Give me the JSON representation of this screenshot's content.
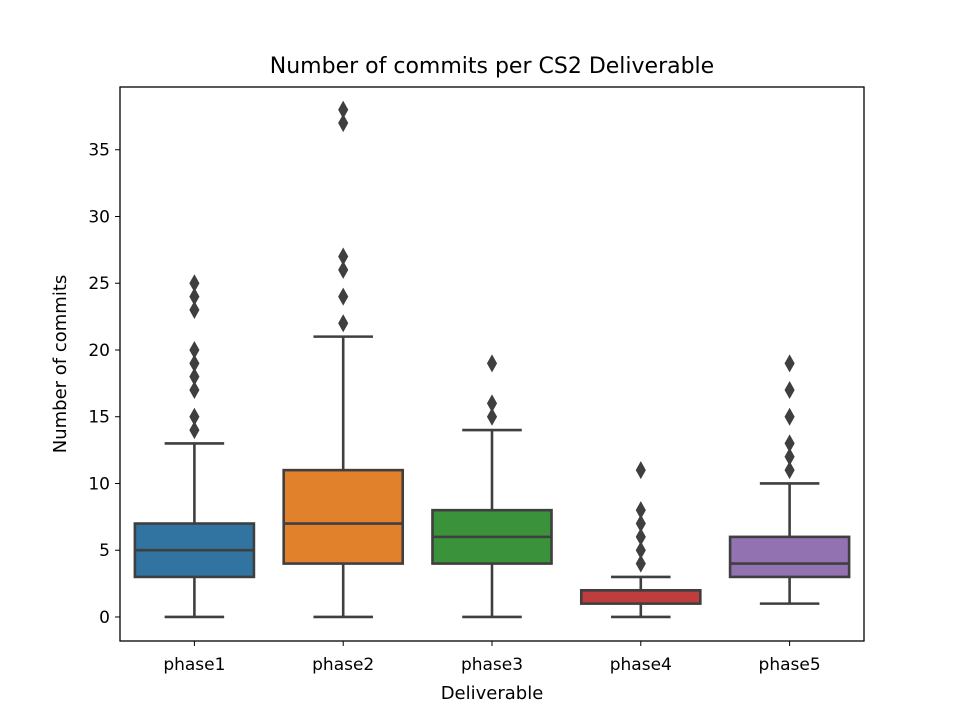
{
  "chart_data": {
    "type": "box",
    "title": "Number of commits per CS2 Deliverable",
    "xlabel": "Deliverable",
    "ylabel": "Number of commits",
    "ylim": [
      -1.8,
      39.7
    ],
    "yticks": [
      0,
      5,
      10,
      15,
      20,
      25,
      30,
      35
    ],
    "grid": false,
    "categories": [
      "phase1",
      "phase2",
      "phase3",
      "phase4",
      "phase5"
    ],
    "colors": [
      "#3274a1",
      "#e1812c",
      "#3a923a",
      "#c03d3e",
      "#9372b2"
    ],
    "boxes": [
      {
        "name": "phase1",
        "whisker_low": 0,
        "q1": 3,
        "median": 5,
        "q3": 7,
        "whisker_high": 13,
        "outliers": [
          14,
          15,
          17,
          18,
          19,
          20,
          23,
          24,
          25
        ]
      },
      {
        "name": "phase2",
        "whisker_low": 0,
        "q1": 4,
        "median": 7,
        "q3": 11,
        "whisker_high": 21,
        "outliers": [
          22,
          24,
          26,
          27,
          37,
          38
        ]
      },
      {
        "name": "phase3",
        "whisker_low": 0,
        "q1": 4,
        "median": 6,
        "q3": 8,
        "whisker_high": 14,
        "outliers": [
          15,
          16,
          19
        ]
      },
      {
        "name": "phase4",
        "whisker_low": 0,
        "q1": 1,
        "median": 2,
        "q3": 2,
        "whisker_high": 3,
        "outliers": [
          4,
          5,
          6,
          7,
          8,
          11
        ]
      },
      {
        "name": "phase5",
        "whisker_low": 1,
        "q1": 3,
        "median": 4,
        "q3": 6,
        "whisker_high": 10,
        "outliers": [
          11,
          12,
          13,
          15,
          17,
          19
        ]
      }
    ]
  }
}
